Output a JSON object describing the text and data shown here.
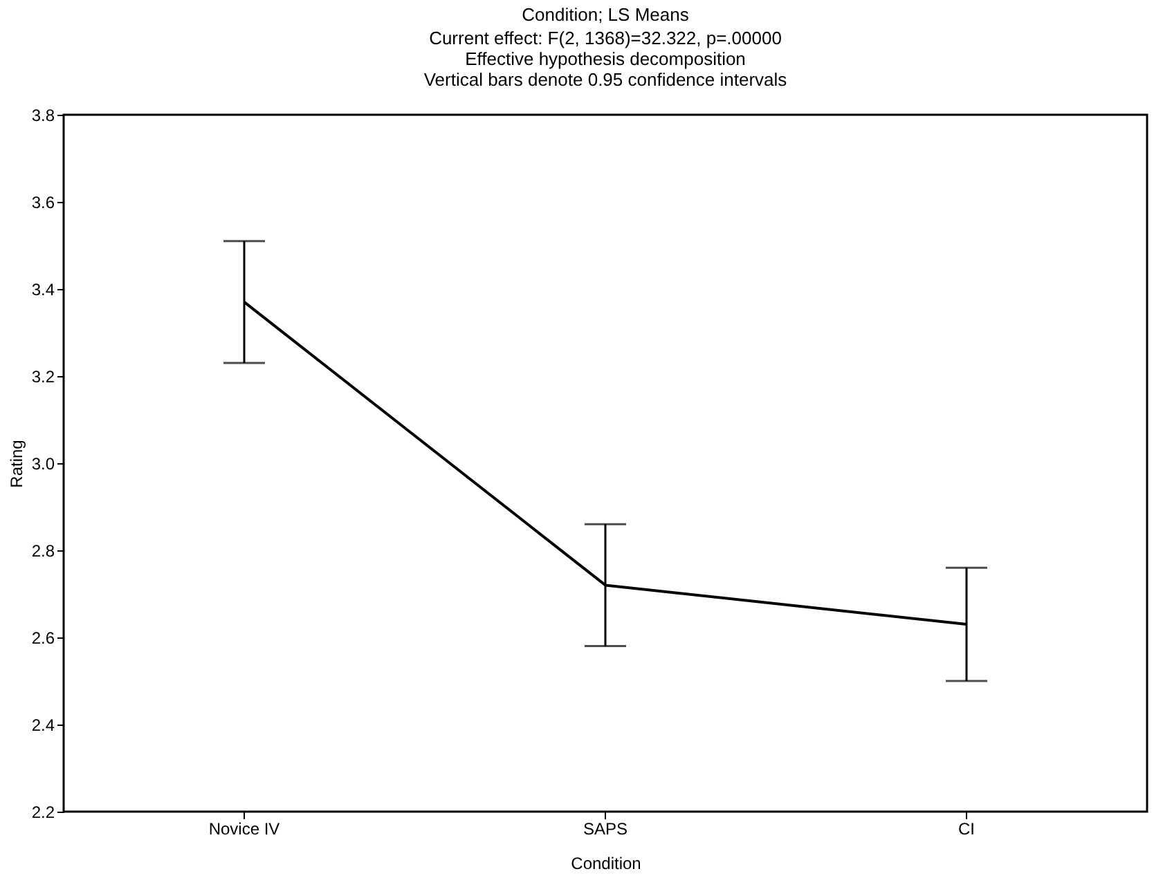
{
  "chart_data": {
    "type": "line",
    "title": "Condition; LS Means",
    "subtitle": "Current effect: F(2, 1368)=32.322, p=.00000\nEffective hypothesis decomposition\nVertical bars denote 0.95 confidence intervals",
    "xlabel": "Condition",
    "ylabel": "Rating",
    "categories": [
      "Novice IV",
      "SAPS",
      "CI"
    ],
    "series": [
      {
        "color": "#000000",
        "values": [
          3.37,
          2.72,
          2.63
        ],
        "errors": [
          0.14,
          0.14,
          0.13
        ]
      }
    ],
    "ylim": [
      2.2,
      3.8
    ],
    "yticks": [
      2.2,
      2.4,
      2.6,
      2.8,
      {
        "value": 3,
        "label": "3.0"
      },
      3.2,
      3.4,
      3.6,
      3.8
    ],
    "grid": false,
    "marker": "none",
    "line_style": "solid"
  }
}
